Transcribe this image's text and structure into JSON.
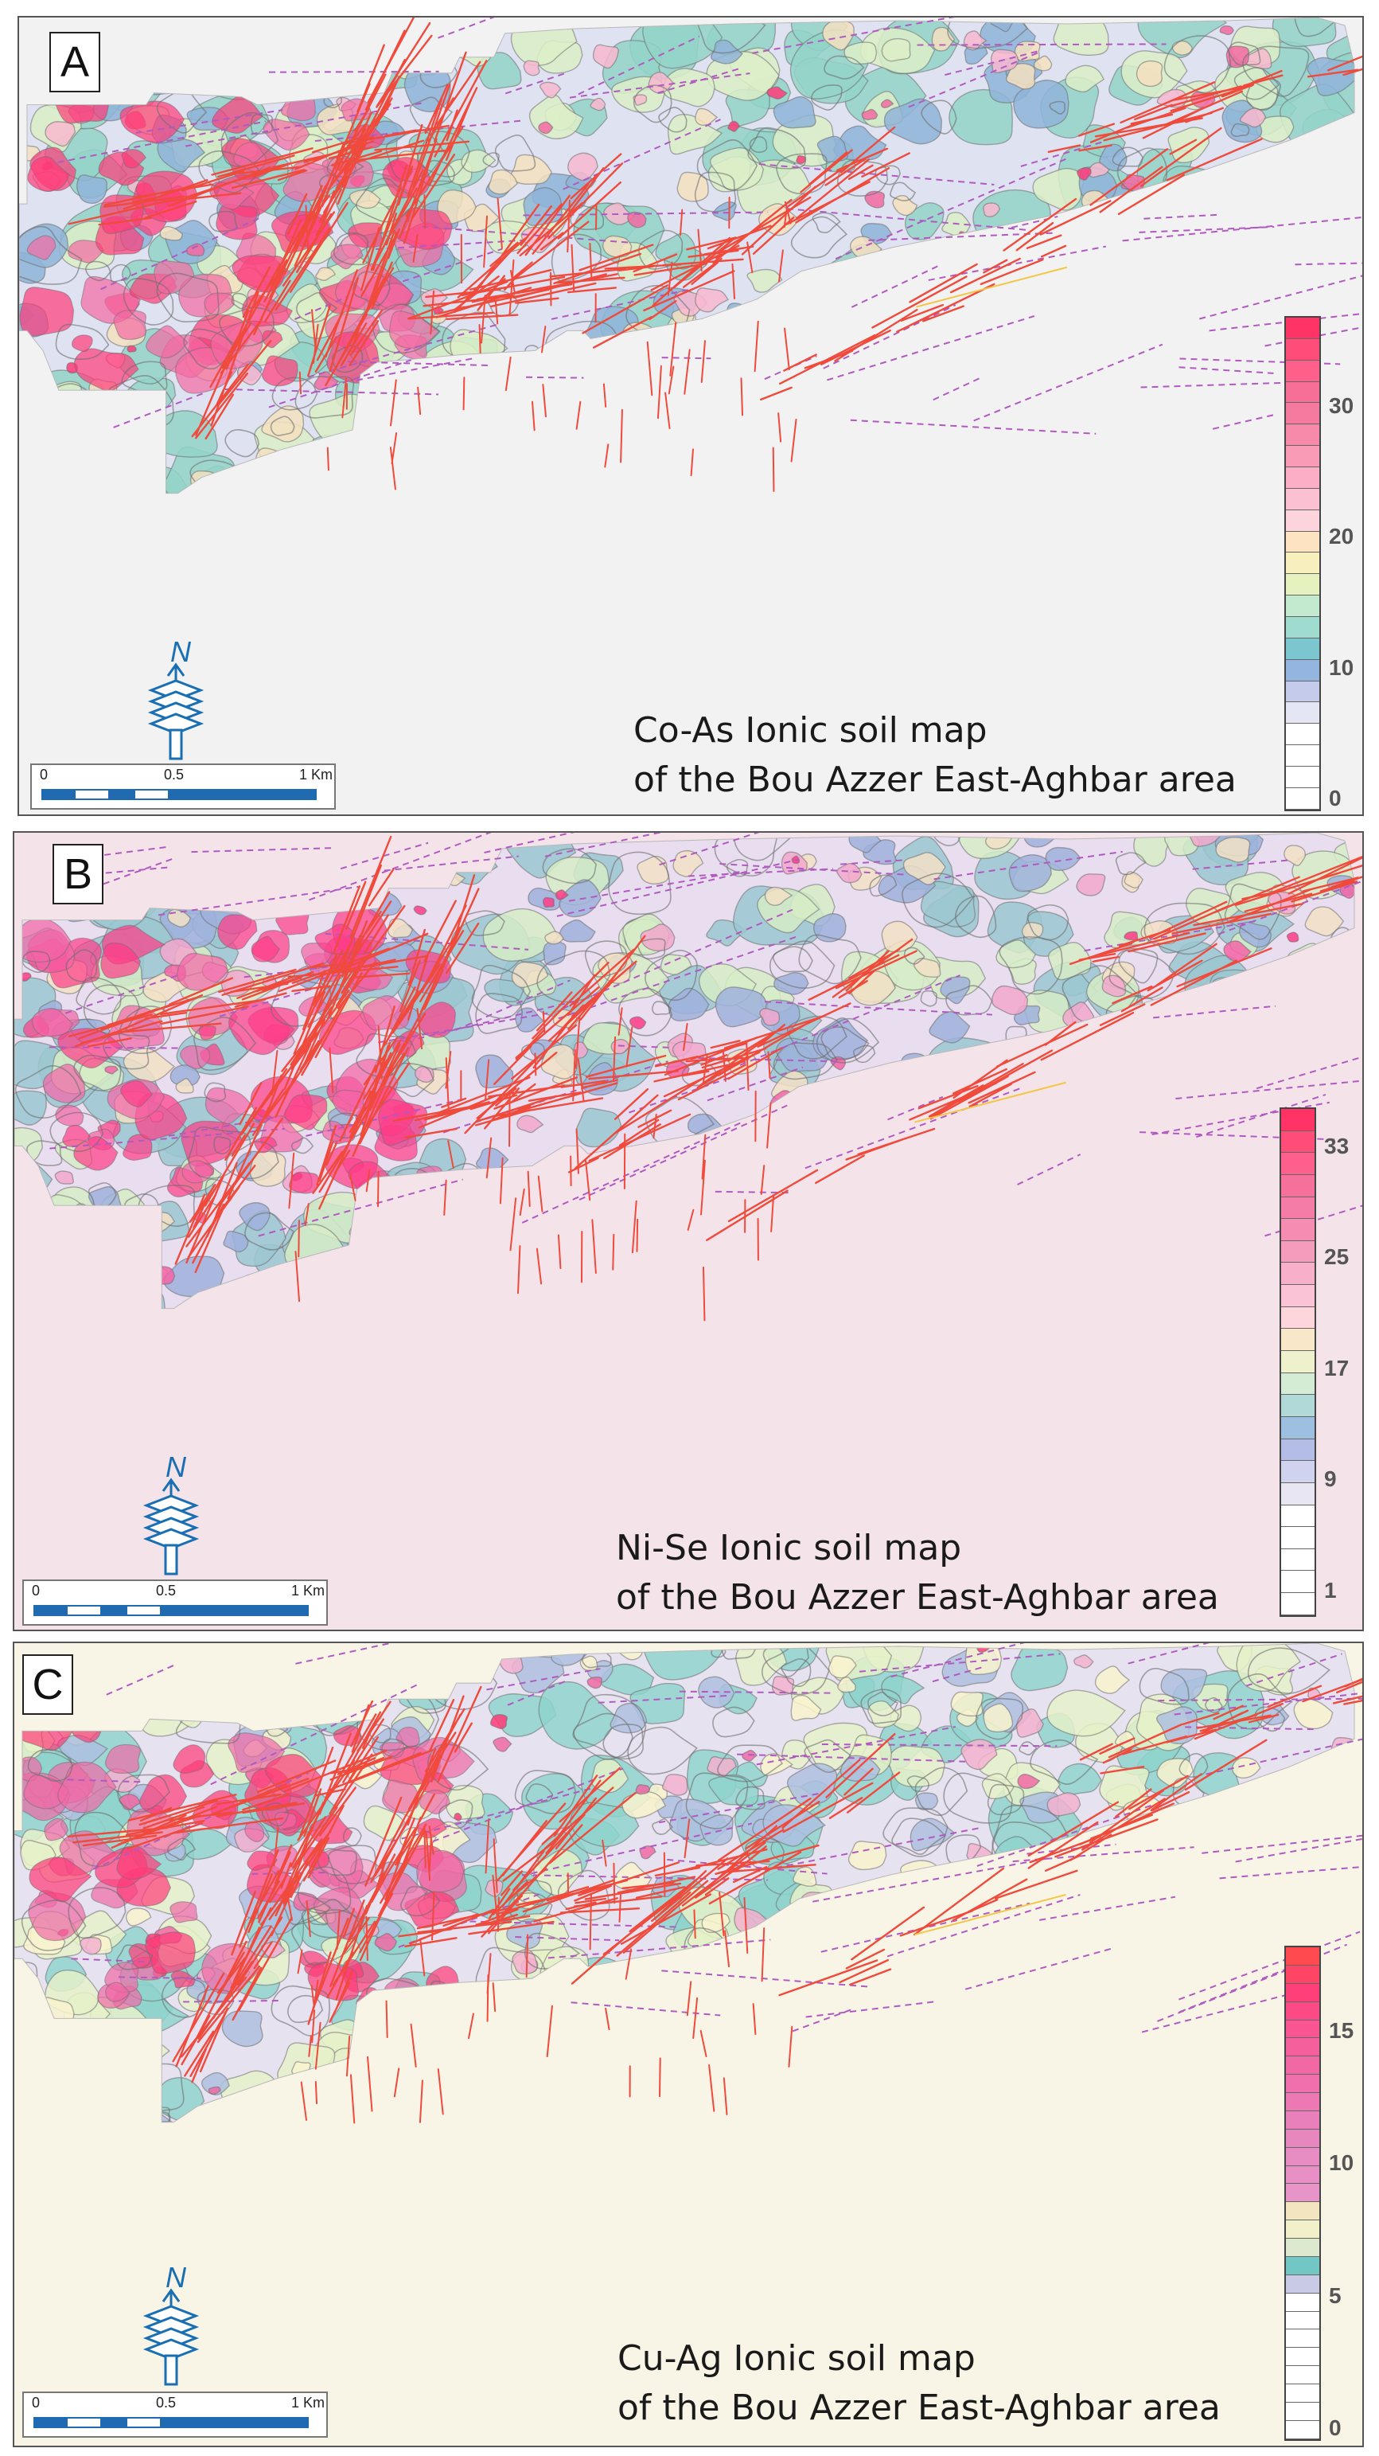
{
  "panels": [
    {
      "id": "A",
      "letter": "A",
      "caption_line1": "Co-As Ionic soil map",
      "caption_line2": "of the Bou Azzer East-Aghbar area",
      "background": "#f2f2f2",
      "palette": [
        "#ff3b78",
        "#f36aa2",
        "#f8b9cf",
        "#f5e0c0",
        "#dcefc8",
        "#93d3c8",
        "#8fb4d8",
        "#dfe2f1"
      ],
      "legend_colors": [
        "#ff3366",
        "#ff4d7a",
        "#ff5f8b",
        "#f76e97",
        "#f57aa0",
        "#f78aab",
        "#f99bb7",
        "#fbaec6",
        "#fcc0d3",
        "#fdd3dc",
        "#fde3c2",
        "#f7efbd",
        "#e5f2c0",
        "#c3e9cf",
        "#9fdccf",
        "#7cc6cf",
        "#94b5e0",
        "#c5cbeb",
        "#e5e6f4",
        "#ffffff",
        "#ffffff",
        "#ffffff",
        "#ffffff"
      ],
      "legend_ticks": [
        {
          "label": "30",
          "value": 30
        },
        {
          "label": "20",
          "value": 20
        },
        {
          "label": "10",
          "value": 10
        },
        {
          "label": "0",
          "value": 0
        }
      ],
      "legend_max": 36
    },
    {
      "id": "B",
      "letter": "B",
      "caption_line1": "Ni-Se Ionic soil map",
      "caption_line2": "of the Bou Azzer East-Aghbar area",
      "background": "#f4e4ea",
      "palette": [
        "#ff3b86",
        "#f464a7",
        "#f2a7cc",
        "#f2e0c6",
        "#d6ecc7",
        "#9bc8d1",
        "#9fb2dc",
        "#e8deef"
      ],
      "legend_colors": [
        "#ff3366",
        "#ff4d7a",
        "#ff5f8b",
        "#f6709c",
        "#f47ca6",
        "#f58cb1",
        "#f59cbc",
        "#f8afc9",
        "#fac3d6",
        "#fcd6da",
        "#f8e7c9",
        "#eef1cb",
        "#d3ecd3",
        "#b0d9d8",
        "#9dbfe0",
        "#b4bde6",
        "#d0d3ee",
        "#e9e6f4",
        "#ffffff",
        "#ffffff",
        "#ffffff",
        "#ffffff",
        "#ffffff"
      ],
      "legend_ticks": [
        {
          "label": "33",
          "value": 33
        },
        {
          "label": "25",
          "value": 25
        },
        {
          "label": "17",
          "value": 17
        },
        {
          "label": "9",
          "value": 9
        },
        {
          "label": "1",
          "value": 1
        }
      ],
      "legend_max": 35
    },
    {
      "id": "C",
      "letter": "C",
      "caption_line1": "Cu-Ag Ionic soil map",
      "caption_line2": "of the Bou Azzer East-Aghbar area",
      "background": "#f8f5e6",
      "palette": [
        "#ff3b78",
        "#f06aa5",
        "#f3b1cf",
        "#f9f3cf",
        "#e5f1c9",
        "#8fd4cc",
        "#aebfe0",
        "#e7e2f0"
      ],
      "legend_colors": [
        "#ff4a50",
        "#ff4466",
        "#ff3f78",
        "#fc4a86",
        "#f95592",
        "#f55f9c",
        "#f268a5",
        "#ef70ad",
        "#ec78b4",
        "#ea80bb",
        "#e886c0",
        "#e88cc4",
        "#e890c6",
        "#e994c8",
        "#f3e5c0",
        "#f2f0c8",
        "#dce9ce",
        "#72c6c4",
        "#c9cbe6",
        "#ffffff",
        "#ffffff",
        "#ffffff",
        "#ffffff",
        "#ffffff",
        "#ffffff",
        "#ffffff",
        "#ffffff"
      ],
      "legend_ticks": [
        {
          "label": "15",
          "value": 15
        },
        {
          "label": "10",
          "value": 10
        },
        {
          "label": "5",
          "value": 5
        },
        {
          "label": "0",
          "value": 0
        }
      ],
      "legend_max": 17.8
    }
  ],
  "scale_bar": {
    "labels": [
      "0",
      "0.5",
      "1 Km"
    ]
  },
  "north_arrow": {
    "label": "N"
  },
  "colors": {
    "fault": "#ef4a3c",
    "dashed_fault": "#b05ac0",
    "contour": "#6e6e6e"
  }
}
